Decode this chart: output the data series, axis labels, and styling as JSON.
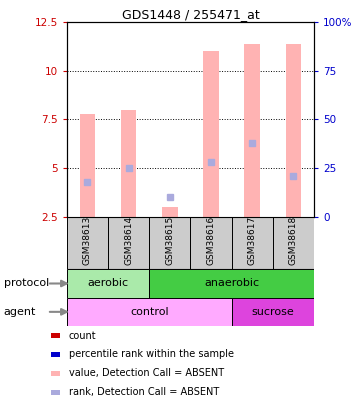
{
  "title": "GDS1448 / 255471_at",
  "samples": [
    "GSM38613",
    "GSM38614",
    "GSM38615",
    "GSM38616",
    "GSM38617",
    "GSM38618"
  ],
  "bar_values": [
    7.8,
    8.0,
    3.0,
    11.0,
    11.4,
    11.4
  ],
  "rank_values": [
    4.3,
    5.0,
    3.5,
    5.3,
    6.3,
    4.6
  ],
  "bar_color": "#ffb3b3",
  "rank_color": "#aaaadd",
  "ylim_left": [
    2.5,
    12.5
  ],
  "ylim_right": [
    0,
    100
  ],
  "yticks_left": [
    2.5,
    5.0,
    7.5,
    10.0,
    12.5
  ],
  "yticks_right": [
    0,
    25,
    50,
    75,
    100
  ],
  "ytick_labels_left": [
    "2.5",
    "5",
    "7.5",
    "10",
    "12.5"
  ],
  "ytick_labels_right": [
    "0",
    "25",
    "50",
    "75",
    "100%"
  ],
  "left_axis_color": "#cc0000",
  "right_axis_color": "#0000cc",
  "grid_yticks": [
    5.0,
    7.5,
    10.0
  ],
  "protocol_labels": [
    {
      "text": "aerobic",
      "start": 0,
      "end": 2,
      "color": "#aaeaaa"
    },
    {
      "text": "anaerobic",
      "start": 2,
      "end": 6,
      "color": "#44cc44"
    }
  ],
  "agent_labels": [
    {
      "text": "control",
      "start": 0,
      "end": 4,
      "color": "#ffaaff"
    },
    {
      "text": "sucrose",
      "start": 4,
      "end": 6,
      "color": "#dd44dd"
    }
  ],
  "legend_items": [
    {
      "color": "#cc0000",
      "label": "count"
    },
    {
      "color": "#0000cc",
      "label": "percentile rank within the sample"
    },
    {
      "color": "#ffb3b3",
      "label": "value, Detection Call = ABSENT"
    },
    {
      "color": "#aaaadd",
      "label": "rank, Detection Call = ABSENT"
    }
  ],
  "bar_bottom": 2.5,
  "protocol_label": "protocol",
  "agent_label": "agent",
  "sample_box_color": "#cccccc"
}
